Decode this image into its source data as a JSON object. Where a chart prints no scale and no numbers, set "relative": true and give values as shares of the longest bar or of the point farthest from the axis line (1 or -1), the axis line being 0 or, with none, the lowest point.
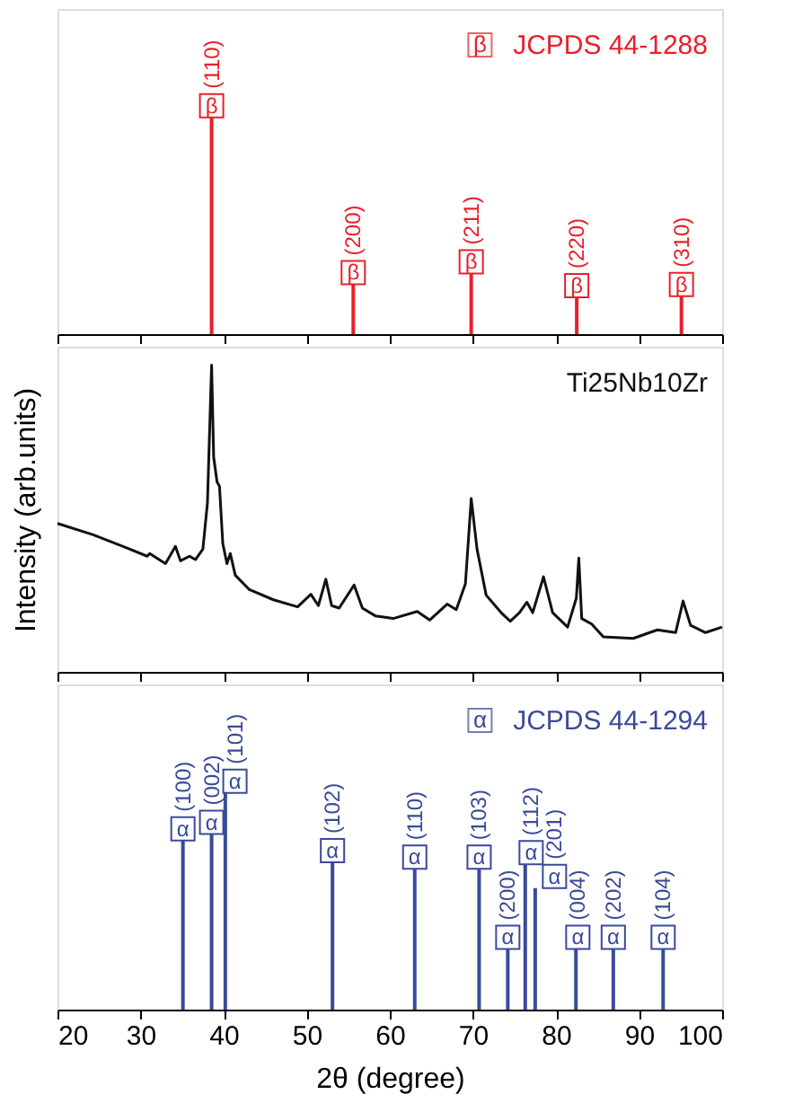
{
  "chart_data": [
    {
      "type": "bar",
      "relative": true,
      "x": [
        38.55,
        55.6,
        69.8,
        82.5,
        95.1
      ],
      "xlim": [
        20,
        100
      ],
      "xticks": [
        20,
        30,
        40,
        50,
        60,
        70,
        80,
        90,
        100
      ],
      "tick_labels": false,
      "legend": "top right",
      "series": [
        {
          "name": "JCPDS 44-1288",
          "color": "#e8202a",
          "values": [
            1,
            0.23,
            0.28,
            0.17,
            0.175
          ]
        }
      ],
      "annotations": [
        "β",
        "(110)",
        "β",
        "(200)",
        "β",
        "(211)",
        "β",
        "(220)",
        "β",
        "(310)"
      ]
    },
    {
      "type": "line",
      "relative": true,
      "xlim": [
        20,
        100
      ],
      "xticks": [
        20,
        30,
        40,
        50,
        60,
        70,
        80,
        90,
        100
      ],
      "tick_labels": false,
      "ylabel": "Intensity (arb.units)",
      "x": [
        20,
        24.3,
        27.9,
        30.8,
        31.1,
        33.0,
        34.2,
        34.8,
        35.9,
        36.6,
        37.5,
        38.05,
        38.55,
        38.8,
        39.2,
        39.5,
        39.9,
        40.4,
        40.8,
        41.4,
        43.1,
        46.0,
        48.9,
        50.5,
        51.4,
        52.3,
        53.0,
        53.9,
        55.7,
        56.7,
        58.3,
        60.4,
        63.3,
        64.8,
        66.9,
        68.0,
        69.1,
        69.8,
        70.5,
        71.6,
        73.4,
        74.5,
        75.6,
        76.5,
        77.2,
        78.5,
        79.6,
        81.4,
        82.45,
        82.75,
        83.1,
        84.3,
        85.7,
        89.3,
        92.2,
        94.4,
        95.3,
        96.2,
        98.0,
        100
      ],
      "series": [
        {
          "name": "Ti25Nb10Zr",
          "color": "#111111",
          "values": [
            0.484,
            0.447,
            0.409,
            0.377,
            0.386,
            0.353,
            0.409,
            0.362,
            0.377,
            0.366,
            0.4,
            0.55,
            1.0,
            0.7,
            0.62,
            0.605,
            0.418,
            0.353,
            0.386,
            0.315,
            0.268,
            0.235,
            0.212,
            0.253,
            0.216,
            0.302,
            0.216,
            0.208,
            0.283,
            0.208,
            0.182,
            0.174,
            0.197,
            0.169,
            0.221,
            0.203,
            0.287,
            0.565,
            0.4,
            0.25,
            0.193,
            0.165,
            0.193,
            0.227,
            0.193,
            0.31,
            0.193,
            0.146,
            0.24,
            0.371,
            0.174,
            0.156,
            0.114,
            0.109,
            0.137,
            0.128,
            0.231,
            0.152,
            0.128,
            0.146
          ]
        }
      ]
    },
    {
      "type": "bar",
      "relative": true,
      "x": [
        35.1,
        38.55,
        40.2,
        53.1,
        63.0,
        70.75,
        74.2,
        76.3,
        77.5,
        82.4,
        86.9,
        92.9
      ],
      "xlim": [
        20,
        100
      ],
      "xticks": [
        20,
        30,
        40,
        50,
        60,
        70,
        80,
        90,
        100
      ],
      "tick_labels": "x",
      "legend": "top right",
      "xlabel": "2θ (degree)",
      "series": [
        {
          "name": "JCPDS 44-1294",
          "color": "#3a4a9a",
          "values": [
            0.78,
            0.81,
            1,
            0.68,
            0.65,
            0.65,
            0.28,
            0.67,
            0.56,
            0.28,
            0.28,
            0.28
          ]
        }
      ],
      "annotations": [
        "α",
        "(100)",
        "α",
        "(002)",
        "α",
        "(101)",
        "α",
        "(102)",
        "α",
        "(110)",
        "α",
        "(103)",
        "α",
        "(200)",
        "α",
        "(112)",
        "α",
        "(201)",
        "α",
        "(004)",
        "α",
        "(202)",
        "α",
        "(104)"
      ]
    }
  ]
}
